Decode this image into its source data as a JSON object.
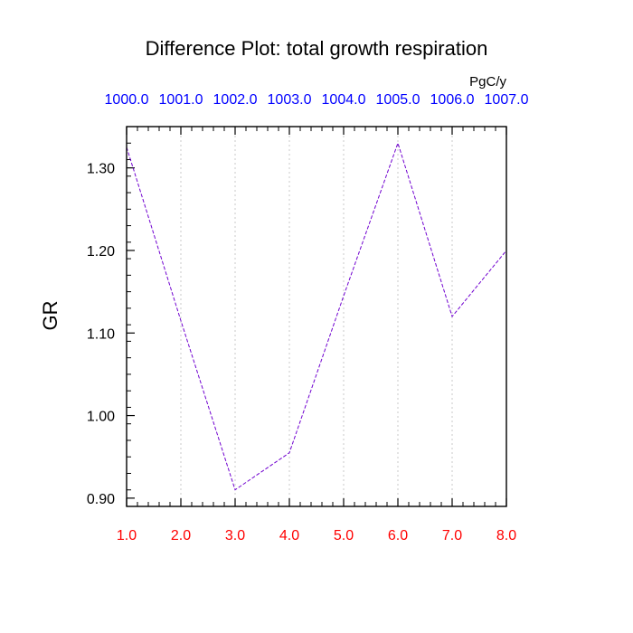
{
  "chart_data": {
    "type": "line",
    "title": "Difference Plot: total growth respiration",
    "units": "PgC/y",
    "ylabel": "GR",
    "x": [
      1.0,
      2.0,
      3.0,
      4.0,
      5.0,
      6.0,
      7.0,
      8.0
    ],
    "xlim": [
      1.0,
      8.0
    ],
    "ylim": [
      0.89,
      1.35
    ],
    "bottom_tick_labels": [
      "1.0",
      "2.0",
      "3.0",
      "4.0",
      "5.0",
      "6.0",
      "7.0",
      "8.0"
    ],
    "top_tick_labels": [
      "1000.0",
      "1001.0",
      "1002.0",
      "1003.0",
      "1004.0",
      "1005.0",
      "1006.0",
      "1007.0"
    ],
    "y_ticks": [
      0.9,
      1.0,
      1.1,
      1.2,
      1.3
    ],
    "y_tick_labels": [
      "0.90",
      "1.00",
      "1.10",
      "1.20",
      "1.30"
    ],
    "series": [
      {
        "values": [
          1.325,
          1.115,
          0.91,
          0.955,
          1.145,
          1.33,
          1.12,
          1.2
        ],
        "color": "#7000d0",
        "dash": true
      }
    ],
    "grid": "vertical dotted",
    "colors": {
      "bottom_tick_labels": "#ff0000",
      "top_tick_labels": "#0000ff"
    }
  }
}
